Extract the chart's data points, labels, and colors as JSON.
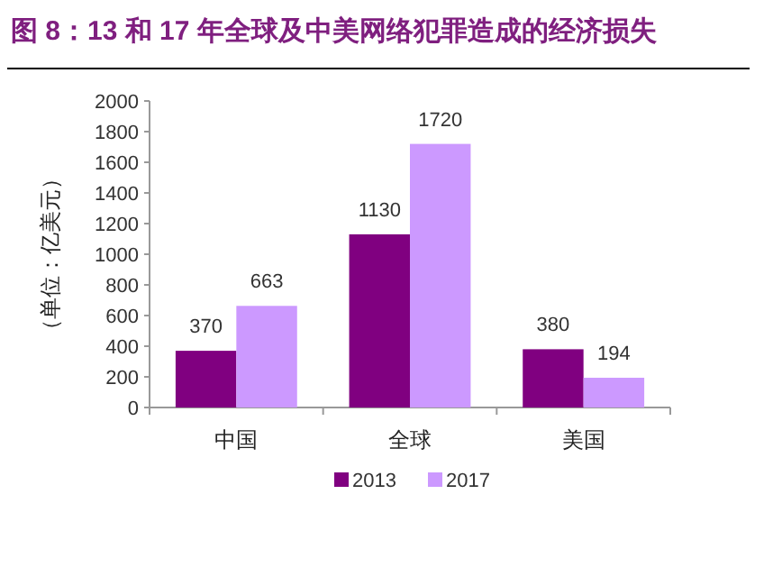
{
  "chart_data": {
    "type": "bar",
    "title": "图 8：13 和 17 年全球及中美网络犯罪造成的经济损失",
    "ylabel": "（单位：亿美元）",
    "categories": [
      "中国",
      "全球",
      "美国"
    ],
    "series": [
      {
        "name": "2013",
        "color": "#800080",
        "values": [
          370,
          1130,
          380
        ]
      },
      {
        "name": "2017",
        "color": "#cc99ff",
        "values": [
          663,
          1720,
          194
        ]
      }
    ],
    "ylim": [
      0,
      2000
    ],
    "yticks": [
      0,
      200,
      400,
      600,
      800,
      1000,
      1200,
      1400,
      1600,
      1800,
      2000
    ],
    "data_labels": true,
    "legend": "bottom",
    "grid": false
  }
}
